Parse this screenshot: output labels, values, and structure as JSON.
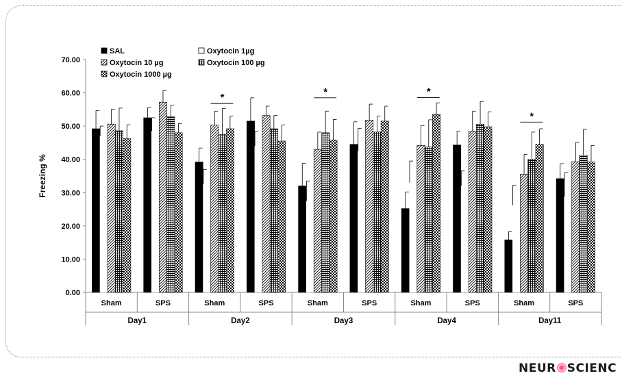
{
  "chart_data": {
    "type": "bar",
    "ylabel": "Freezing %",
    "ylim": [
      0,
      70
    ],
    "yticks": [
      "0.00",
      "10.00",
      "20.00",
      "30.00",
      "40.00",
      "50.00",
      "60.00",
      "70.00"
    ],
    "days": [
      "Day1",
      "Day2",
      "Day3",
      "Day4",
      "Day11"
    ],
    "conditions": [
      "Sham",
      "SPS"
    ],
    "series": [
      {
        "name": "SAL",
        "pattern": "solid",
        "values": [
          49.2,
          52.5,
          39.2,
          51.5,
          32.0,
          44.5,
          25.2,
          44.3,
          15.8,
          34.2
        ],
        "errors": [
          5.5,
          3.0,
          4.2,
          7.0,
          6.8,
          6.8,
          5.0,
          4.2,
          2.5,
          4.5
        ]
      },
      {
        "name": "Oxytocin 1µg",
        "pattern": "open",
        "values": [
          47.0,
          48.5,
          32.5,
          44.0,
          27.5,
          42.5,
          33.0,
          32.0,
          26.2,
          28.8
        ],
        "errors": [
          3.0,
          4.0,
          4.5,
          4.5,
          6.0,
          6.8,
          6.5,
          4.5,
          6.0,
          7.2
        ]
      },
      {
        "name": "Oxytocin 10 µg",
        "pattern": "diagonal",
        "values": [
          50.6,
          57.2,
          50.3,
          53.2,
          43.0,
          51.8,
          44.2,
          48.5,
          35.5,
          39.3
        ],
        "errors": [
          4.5,
          3.5,
          4.2,
          2.8,
          5.2,
          4.8,
          6.0,
          6.0,
          6.0,
          5.8
        ]
      },
      {
        "name": "Oxytocin 100 µg",
        "pattern": "grid",
        "values": [
          48.6,
          52.8,
          47.5,
          49.2,
          48.0,
          48.2,
          43.7,
          50.6,
          40.0,
          41.2
        ],
        "errors": [
          6.8,
          3.5,
          7.8,
          4.0,
          6.5,
          4.8,
          8.2,
          6.8,
          8.2,
          7.8
        ]
      },
      {
        "name": "Oxytocin 1000 µg",
        "pattern": "checker",
        "values": [
          46.2,
          48.0,
          49.2,
          45.5,
          45.8,
          51.5,
          53.5,
          49.8,
          44.5,
          39.2
        ],
        "errors": [
          4.2,
          2.8,
          3.8,
          4.8,
          6.2,
          4.5,
          3.5,
          4.5,
          4.7,
          5.0
        ]
      }
    ],
    "significance": [
      {
        "group": 2,
        "y": 56.8,
        "label": "*"
      },
      {
        "group": 4,
        "y": 58.5,
        "label": "*"
      },
      {
        "group": 6,
        "y": 58.6,
        "label": "*"
      },
      {
        "group": 8,
        "y": 51.2,
        "label": "*"
      }
    ],
    "legend_position": "top-left"
  },
  "brand": {
    "before": "NEUR",
    "after": "SCIENC"
  }
}
